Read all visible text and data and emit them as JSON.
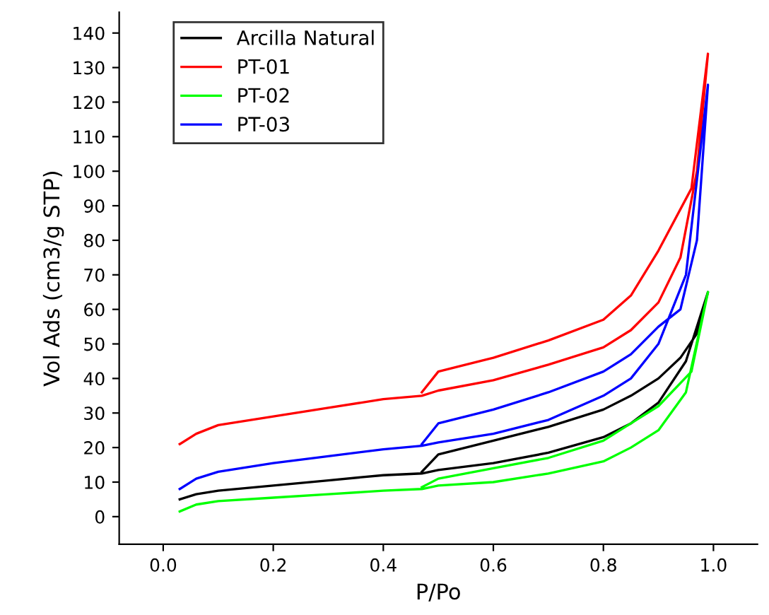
{
  "chart_data": {
    "type": "line",
    "xlabel": "P/Po",
    "ylabel": "Vol Ads (cm3/g STP)",
    "xlim": [
      -0.08,
      1.08
    ],
    "ylim": [
      -8,
      146
    ],
    "xticks": [
      {
        "value": 0,
        "label": "0.0"
      },
      0.2,
      0.4,
      0.6,
      0.8,
      {
        "value": 1,
        "label": "1.0"
      }
    ],
    "yticks": [
      0,
      10,
      20,
      30,
      40,
      50,
      60,
      70,
      80,
      90,
      100,
      110,
      120,
      130,
      140
    ],
    "legend": "top left",
    "grid": false,
    "marker": "none",
    "line_style": "solid",
    "series": [
      {
        "name": "Arcilla Natural",
        "color": "#000000",
        "x": [
          0.03,
          0.06,
          0.1,
          0.2,
          0.3,
          0.4,
          0.47,
          0.5,
          0.6,
          0.7,
          0.8,
          0.85,
          0.9,
          0.95,
          0.99,
          0.97,
          0.94,
          0.9,
          0.85,
          0.8,
          0.7,
          0.6,
          0.5,
          0.47
        ],
        "values": [
          5,
          6.5,
          7.5,
          9,
          10.5,
          12,
          12.5,
          13.5,
          15.5,
          18.5,
          23,
          27,
          33,
          45,
          65,
          53,
          46,
          40,
          35,
          31,
          26,
          22,
          18,
          13
        ]
      },
      {
        "name": "PT-01",
        "color": "#ff0000",
        "x": [
          0.03,
          0.06,
          0.1,
          0.2,
          0.3,
          0.4,
          0.47,
          0.5,
          0.6,
          0.7,
          0.8,
          0.85,
          0.9,
          0.94,
          0.97,
          0.99,
          0.96,
          0.9,
          0.85,
          0.8,
          0.7,
          0.6,
          0.5,
          0.47
        ],
        "values": [
          21,
          24,
          26.5,
          29,
          31.5,
          34,
          35,
          36.5,
          39.5,
          44,
          49,
          54,
          62,
          75,
          100,
          134,
          95,
          77,
          64,
          57,
          51,
          46,
          42,
          36
        ]
      },
      {
        "name": "PT-02",
        "color": "#00ff00",
        "x": [
          0.03,
          0.06,
          0.1,
          0.2,
          0.3,
          0.4,
          0.47,
          0.5,
          0.6,
          0.7,
          0.8,
          0.85,
          0.9,
          0.95,
          0.99,
          0.96,
          0.9,
          0.85,
          0.8,
          0.7,
          0.6,
          0.5,
          0.47
        ],
        "values": [
          1.5,
          3.5,
          4.5,
          5.5,
          6.5,
          7.5,
          8,
          9,
          10,
          12.5,
          16,
          20,
          25,
          36,
          65,
          42,
          32,
          27,
          22,
          17,
          14,
          11,
          8.5
        ]
      },
      {
        "name": "PT-03",
        "color": "#0000ff",
        "x": [
          0.03,
          0.06,
          0.1,
          0.2,
          0.3,
          0.4,
          0.47,
          0.5,
          0.6,
          0.7,
          0.8,
          0.85,
          0.9,
          0.95,
          0.99,
          0.97,
          0.94,
          0.9,
          0.85,
          0.8,
          0.7,
          0.6,
          0.5,
          0.47
        ],
        "values": [
          8,
          11,
          13,
          15.5,
          17.5,
          19.5,
          20.5,
          21.5,
          24,
          28,
          35,
          40,
          50,
          70,
          125,
          80,
          60,
          55,
          47,
          42,
          36,
          31,
          27,
          21
        ]
      }
    ]
  }
}
